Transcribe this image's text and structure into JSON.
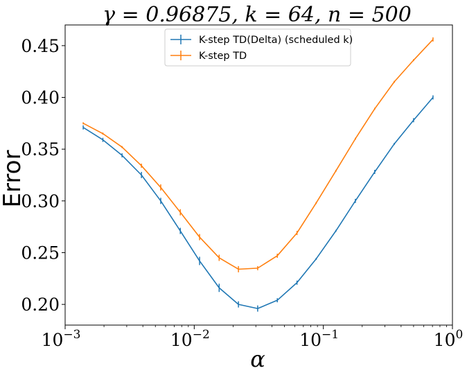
{
  "chart_data": {
    "type": "line",
    "title": "γ = 0.96875, k = 64, n = 500",
    "xlabel": "α",
    "ylabel": "Error",
    "xscale": "log",
    "xlim": [
      0.001,
      1
    ],
    "ylim": [
      0.18,
      0.47
    ],
    "yticks": [
      0.2,
      0.25,
      0.3,
      0.35,
      0.4,
      0.45
    ],
    "ytick_labels": [
      "0.20",
      "0.25",
      "0.30",
      "0.35",
      "0.40",
      "0.45"
    ],
    "xticks": [
      {
        "value": 0.001,
        "base": "10",
        "exp": "−3"
      },
      {
        "value": 0.01,
        "base": "10",
        "exp": "−2"
      },
      {
        "value": 0.1,
        "base": "10",
        "exp": "−1"
      },
      {
        "value": 1,
        "base": "10",
        "exp": "0"
      }
    ],
    "legend": "top-center",
    "grid": false,
    "x": [
      0.00138,
      0.00196,
      0.00276,
      0.0039,
      0.0055,
      0.0078,
      0.011,
      0.0156,
      0.022,
      0.031,
      0.044,
      0.0625,
      0.088,
      0.125,
      0.177,
      0.25,
      0.354,
      0.5,
      0.707
    ],
    "series": [
      {
        "name": "K-step TD(Delta) (scheduled k)",
        "color": "#1f77b4",
        "values": [
          0.371,
          0.359,
          0.344,
          0.325,
          0.3,
          0.271,
          0.242,
          0.216,
          0.2,
          0.196,
          0.204,
          0.221,
          0.244,
          0.271,
          0.3,
          0.328,
          0.355,
          0.378,
          0.4
        ],
        "errors": [
          0.002,
          0.002,
          0.002,
          0.003,
          0.003,
          0.003,
          0.004,
          0.004,
          0.003,
          0.003,
          0.002,
          0.002,
          0.001,
          0.001,
          0.002,
          0.002,
          0.001,
          0.002,
          0.002
        ]
      },
      {
        "name": "K-step TD",
        "color": "#ff7f0e",
        "values": [
          0.375,
          0.365,
          0.352,
          0.334,
          0.313,
          0.289,
          0.265,
          0.245,
          0.234,
          0.235,
          0.247,
          0.269,
          0.298,
          0.329,
          0.36,
          0.389,
          0.415,
          0.436,
          0.456
        ],
        "errors": [
          0.001,
          0.001,
          0.001,
          0.002,
          0.003,
          0.003,
          0.003,
          0.003,
          0.003,
          0.002,
          0.002,
          0.002,
          0.001,
          0.001,
          0.001,
          0.001,
          0.001,
          0.001,
          0.002
        ]
      }
    ]
  }
}
